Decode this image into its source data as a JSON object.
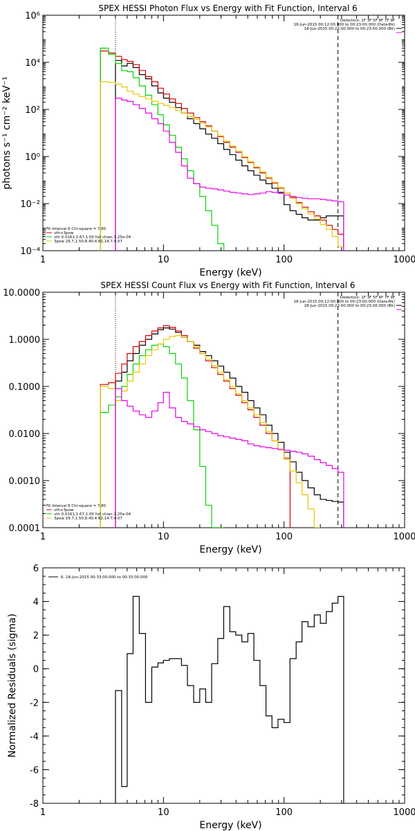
{
  "chart_data": [
    {
      "type": "line",
      "title": "SPEX HESSI Photon Flux vs Energy with Fit Function, Interval 6",
      "xlabel": "Energy (keV)",
      "ylabel": "photons s⁻¹ cm⁻² keV⁻¹",
      "xscale": "log",
      "yscale": "log",
      "xlim": [
        1,
        1000
      ],
      "ylim": [
        0.0001,
        1000000
      ],
      "xticks": [
        "1",
        "10",
        "100",
        "1000"
      ],
      "yticks": [
        "10⁻⁴",
        "10⁻²",
        "10⁰",
        "10²",
        "10⁴",
        "10⁶"
      ],
      "fit_lines": [
        4,
        280
      ],
      "legend_top": [
        "Detectors: 1F 3F 5F 6F 7F 9F",
        "18-Jun-2015 00:12:00.000 to 00:23:00.000 (Data-Bk)",
        "18-Jun-2015 00:22:00.000 to 00:23:00.000 (Bk)"
      ],
      "legend_bottom": [
        "Fit Interval 6   Chi-square = 7.80",
        "vth+3pow",
        "vth 0.0161,1.67,1.00  full chian 1.25e-04",
        "3pow 29.7,1.50,8.40,4.82,14.7,4.07"
      ],
      "series": [
        {
          "name": "Data-Bk",
          "color": "#000000",
          "x": [
            4,
            4.5,
            5,
            5.6,
            6.3,
            7.1,
            8,
            9,
            10,
            11.2,
            12.6,
            14.1,
            15.8,
            17.8,
            20,
            22.4,
            25.1,
            28.2,
            31.6,
            35.5,
            39.8,
            44.7,
            50.1,
            56.2,
            63.1,
            70.8,
            79.4,
            89.1,
            100,
            112,
            126,
            141,
            158,
            178,
            200,
            224,
            251,
            280
          ],
          "y": [
            12000,
            7000,
            9000,
            6000,
            3000,
            2000,
            1000,
            500,
            300,
            200,
            120,
            70,
            40,
            25,
            15,
            9,
            6,
            3.5,
            2,
            1.2,
            0.7,
            0.4,
            0.25,
            0.16,
            0.1,
            0.07,
            0.045,
            0.03,
            0.009,
            0.005,
            0.0035,
            0.0025,
            0.002,
            0.002,
            0.0025,
            0.003,
            0.003,
            0.003
          ]
        },
        {
          "name": "vth+3pow",
          "color": "#d40000",
          "x": [
            3,
            3.5,
            4,
            4.5,
            5,
            5.6,
            6.3,
            7.1,
            8,
            9,
            10,
            11.2,
            12.6,
            14.1,
            15.8,
            17.8,
            20,
            22.4,
            25.1,
            28.2,
            31.6,
            35.5,
            39.8,
            44.7,
            50.1,
            56.2,
            63.1,
            70.8,
            79.4,
            89.1,
            100,
            112,
            126,
            141,
            158,
            178,
            200,
            224,
            251,
            280
          ],
          "y": [
            30000,
            25000,
            18000,
            13000,
            11000,
            8000,
            4500,
            2500,
            1500,
            800,
            450,
            280,
            180,
            110,
            70,
            45,
            30,
            20,
            12,
            7,
            4,
            2.5,
            1.5,
            0.9,
            0.55,
            0.33,
            0.2,
            0.12,
            0.075,
            0.045,
            0.028,
            0.018,
            0.011,
            0.007,
            0.0045,
            0.003,
            0.002,
            0.0012,
            0.0008,
            0.0005
          ]
        },
        {
          "name": "vth",
          "color": "#00d400",
          "x": [
            3,
            3.5,
            4,
            4.5,
            5,
            5.6,
            6.3,
            7.1,
            8,
            9,
            10,
            11.2,
            12.6,
            14.1,
            15.8,
            17.8,
            20,
            22.4,
            25.1,
            28.2
          ],
          "y": [
            40000,
            22000,
            9000,
            4500,
            4000,
            2200,
            1000,
            400,
            160,
            60,
            22,
            8,
            2.5,
            0.8,
            0.25,
            0.07,
            0.02,
            0.005,
            0.0012,
            0.0002
          ]
        },
        {
          "name": "3pow",
          "color": "#e6c800",
          "x": [
            3,
            3.5,
            4,
            4.5,
            5,
            5.6,
            6.3,
            7.1,
            8,
            9,
            10,
            11.2,
            12.6,
            14.1,
            15.8,
            17.8,
            20,
            22.4,
            25.1,
            28.2,
            31.6,
            35.5,
            39.8,
            44.7,
            50.1,
            56.2,
            63.1,
            70.8,
            79.4,
            89.1,
            100,
            112,
            126,
            141,
            158,
            178,
            200,
            224,
            251,
            280
          ],
          "y": [
            1500,
            1400,
            1200,
            900,
            600,
            450,
            350,
            280,
            220,
            180,
            150,
            120,
            90,
            70,
            50,
            38,
            26,
            18,
            12,
            7.5,
            4.5,
            2.8,
            1.7,
            1,
            0.6,
            0.36,
            0.22,
            0.13,
            0.08,
            0.048,
            0.028,
            0.017,
            0.01,
            0.006,
            0.0036,
            0.0022,
            0.0013,
            0.0008,
            0.0004,
            0.00015
          ]
        },
        {
          "name": "Bk",
          "color": "#e600e6",
          "x": [
            4,
            4.5,
            5,
            5.6,
            6.3,
            7.1,
            8,
            9,
            10,
            11.2,
            12.6,
            14.1,
            15.8,
            17.8,
            20,
            22.4,
            25.1,
            28.2,
            31.6,
            35.5,
            39.8,
            44.7,
            50.1,
            56.2,
            63.1,
            70.8,
            79.4,
            89.1,
            100,
            112,
            126,
            141,
            158,
            178,
            200,
            224,
            251,
            280
          ],
          "y": [
            300,
            250,
            220,
            160,
            110,
            70,
            40,
            25,
            12,
            4,
            1.5,
            0.4,
            0.12,
            0.07,
            0.05,
            0.045,
            0.042,
            0.038,
            0.034,
            0.03,
            0.028,
            0.026,
            0.024,
            0.026,
            0.028,
            0.032,
            0.03,
            0.027,
            0.023,
            0.02,
            0.018,
            0.017,
            0.016,
            0.016,
            0.015,
            0.014,
            0.013,
            0.012
          ]
        }
      ]
    },
    {
      "type": "line",
      "title": "SPEX HESSI Count Flux vs Energy with Fit Function, Interval 6",
      "xlabel": "Energy (keV)",
      "ylabel": "",
      "xscale": "log",
      "yscale": "log",
      "xlim": [
        1,
        1000
      ],
      "ylim": [
        0.0001,
        10
      ],
      "xticks": [
        "1",
        "10",
        "100",
        "1000"
      ],
      "yticks": [
        "0.0001",
        "0.0010",
        "0.0100",
        "0.1000",
        "1.0000",
        "10.0000"
      ],
      "fit_lines": [
        4,
        280
      ],
      "legend_top": [
        "Detectors: 1F 3F 5F 6F 7F 9F",
        "18-Jun-2015 00:12:00.000 to 00:23:00.000 (Data-Bk)",
        "18-Jun-2015 00:22:00.000 to 00:23:00.000 (Bk)"
      ],
      "legend_bottom": [
        "Fit Interval 6   Chi-square = 7.80",
        "vth+3pow",
        "vth 0.0161,1.67,1.00  full chian 1.25e-04",
        "3pow 29.7,1.50,8.40,4.82,14.7,4.07"
      ],
      "series": [
        {
          "name": "Data-Bk",
          "color": "#000000",
          "x": [
            4,
            4.5,
            5,
            5.6,
            6.3,
            7.1,
            8,
            9,
            10,
            11.2,
            12.6,
            14.1,
            15.8,
            17.8,
            20,
            22.4,
            25.1,
            28.2,
            31.6,
            35.5,
            39.8,
            44.7,
            50.1,
            56.2,
            63.1,
            70.8,
            79.4,
            89.1,
            100,
            112,
            126,
            141,
            158,
            178,
            200,
            224,
            251,
            280
          ],
          "y": [
            0.13,
            0.2,
            0.35,
            0.5,
            0.75,
            1.0,
            1.3,
            1.6,
            1.75,
            1.65,
            1.4,
            1.1,
            0.9,
            0.75,
            0.55,
            0.45,
            0.35,
            0.27,
            0.2,
            0.15,
            0.1,
            0.075,
            0.05,
            0.035,
            0.025,
            0.015,
            0.01,
            0.0065,
            0.004,
            0.0025,
            0.0015,
            0.001,
            0.0007,
            0.0005,
            0.0004,
            0.00038,
            0.00036,
            0.00035
          ]
        },
        {
          "name": "vth+3pow",
          "color": "#d40000",
          "x": [
            3,
            3.5,
            4,
            4.5,
            5,
            5.6,
            6.3,
            7.1,
            8,
            9,
            10,
            11.2,
            12.6,
            14.1,
            15.8,
            17.8,
            20,
            22.4,
            25.1,
            28.2,
            31.6,
            35.5,
            39.8,
            44.7,
            50.1,
            56.2,
            63.1,
            70.8,
            79.4,
            89.1,
            100
          ],
          "y": [
            0.11,
            0.12,
            0.19,
            0.3,
            0.5,
            0.7,
            0.9,
            1.2,
            1.5,
            1.75,
            1.95,
            1.8,
            1.5,
            1.2,
            0.9,
            0.65,
            0.5,
            0.35,
            0.25,
            0.18,
            0.13,
            0.09,
            0.065,
            0.045,
            0.032,
            0.022,
            0.015,
            0.01,
            0.007,
            0.0045,
            0.003
          ]
        },
        {
          "name": "vth",
          "color": "#00d400",
          "x": [
            3,
            3.5,
            4,
            4.5,
            5,
            5.6,
            6.3,
            7.1,
            8,
            9,
            10,
            11.2,
            12.6,
            14.1,
            15.8,
            17.8,
            20,
            22.4,
            25.1,
            28.2
          ],
          "y": [
            0.028,
            0.04,
            0.06,
            0.1,
            0.18,
            0.3,
            0.45,
            0.6,
            0.75,
            0.8,
            0.7,
            0.5,
            0.3,
            0.15,
            0.05,
            0.012,
            0.002,
            0.0003,
            0.0001,
            5e-05
          ]
        },
        {
          "name": "3pow",
          "color": "#e6c800",
          "x": [
            3,
            3.5,
            4,
            4.5,
            5,
            5.6,
            6.3,
            7.1,
            8,
            9,
            10,
            11.2,
            12.6,
            14.1,
            15.8,
            17.8,
            20,
            22.4,
            25.1,
            28.2,
            31.6,
            35.5,
            39.8,
            44.7,
            50.1,
            56.2,
            63.1,
            70.8,
            79.4,
            89.1,
            100,
            112,
            126,
            141,
            158,
            178
          ],
          "y": [
            0.1,
            0.09,
            0.05,
            0.08,
            0.13,
            0.2,
            0.3,
            0.45,
            0.6,
            0.8,
            1.0,
            1.15,
            1.2,
            1.1,
            0.9,
            0.7,
            0.5,
            0.38,
            0.28,
            0.2,
            0.14,
            0.1,
            0.07,
            0.05,
            0.035,
            0.025,
            0.017,
            0.011,
            0.007,
            0.0045,
            0.0028,
            0.0016,
            0.0009,
            0.0005,
            0.00025,
            0.0001
          ]
        },
        {
          "name": "Bk",
          "color": "#e600e6",
          "x": [
            4,
            4.5,
            5,
            5.6,
            6.3,
            7.1,
            8,
            9,
            10,
            11.2,
            12.6,
            14.1,
            15.8,
            17.8,
            20,
            22.4,
            25.1,
            28.2,
            31.6,
            35.5,
            39.8,
            44.7,
            50.1,
            56.2,
            63.1,
            70.8,
            79.4,
            89.1,
            100,
            112,
            126,
            141,
            158,
            178,
            200,
            224,
            251,
            280
          ],
          "y": [
            0.09,
            0.05,
            0.038,
            0.03,
            0.025,
            0.022,
            0.03,
            0.045,
            0.075,
            0.035,
            0.022,
            0.018,
            0.016,
            0.014,
            0.012,
            0.011,
            0.01,
            0.009,
            0.0085,
            0.008,
            0.0075,
            0.007,
            0.006,
            0.0055,
            0.0052,
            0.005,
            0.0048,
            0.0046,
            0.0044,
            0.0042,
            0.004,
            0.0037,
            0.0033,
            0.0028,
            0.0024,
            0.0021,
            0.0018,
            0.0015
          ]
        }
      ]
    },
    {
      "type": "line",
      "title": "",
      "xlabel": "Energy (keV)",
      "ylabel": "Normalized Residuals (sigma)",
      "xscale": "log",
      "yscale": "linear",
      "xlim": [
        1,
        1000
      ],
      "ylim": [
        -8,
        6
      ],
      "xticks": [
        "1",
        "10",
        "100",
        "1000"
      ],
      "yticks": [
        "-8",
        "-6",
        "-4",
        "-2",
        "0",
        "2",
        "4",
        "6"
      ],
      "legend": "6, 18-Jun-2015 00:33:00.000 to 00:33:00.000",
      "series": [
        {
          "name": "",
          "color": "#000000",
          "x": [
            4,
            4.5,
            5,
            5.6,
            6.3,
            7.1,
            8,
            9,
            10,
            11.2,
            12.6,
            14.1,
            15.8,
            17.8,
            20,
            22.4,
            25.1,
            28.2,
            31.6,
            35.5,
            39.8,
            44.7,
            50.1,
            56.2,
            63.1,
            70.8,
            79.4,
            89.1,
            100,
            112,
            126,
            141,
            158,
            178,
            200,
            224,
            251,
            280
          ],
          "y": [
            -1.3,
            -7,
            0.9,
            4.3,
            2.1,
            -2,
            0.1,
            0.35,
            0.5,
            0.6,
            0.6,
            0.2,
            -1,
            -2,
            -1.2,
            -2,
            0.3,
            1.8,
            3.7,
            2.2,
            2,
            1.6,
            2.1,
            0.5,
            -1,
            -2.8,
            -3.5,
            -3,
            -3.2,
            0.6,
            1.6,
            2.8,
            2.5,
            3.2,
            2.7,
            3.4,
            3.9,
            4.3
          ]
        }
      ]
    }
  ]
}
